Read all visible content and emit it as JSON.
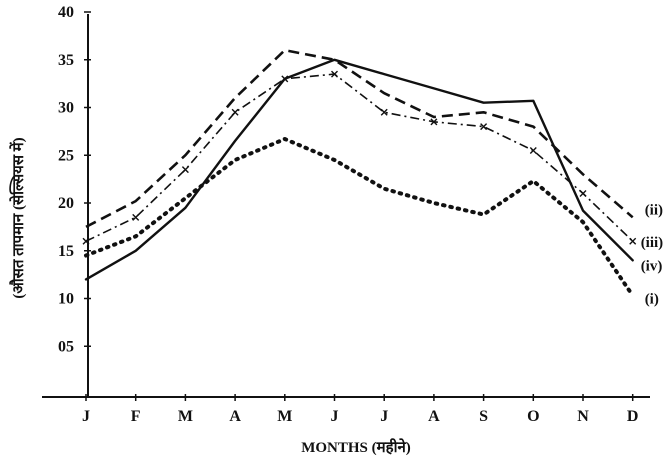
{
  "chart_data": {
    "type": "line",
    "title": "",
    "xlabel": "MONTHS (महीने)",
    "ylabel": "(औसत तापमान (सेल्सियस में)",
    "categories": [
      "J",
      "F",
      "M",
      "A",
      "M",
      "J",
      "J",
      "A",
      "S",
      "O",
      "N",
      "D"
    ],
    "ylim": [
      0,
      40
    ],
    "yticks": [
      "05",
      "10",
      "15",
      "20",
      "25",
      "30",
      "35",
      "40"
    ],
    "grid": false,
    "legend": "inline labels at right end of each line",
    "series": [
      {
        "name": "(i)",
        "style": "dotted",
        "values": [
          14.5,
          16.5,
          20.5,
          24.5,
          26.7,
          24.5,
          21.5,
          20,
          18.8,
          22.3,
          18,
          10.3
        ]
      },
      {
        "name": "(ii)",
        "style": "dashed",
        "values": [
          17.5,
          20.2,
          25,
          31,
          36,
          35,
          31.5,
          29,
          29.5,
          28,
          23,
          18.5
        ]
      },
      {
        "name": "(iii)",
        "style": "dash-dot-x",
        "values": [
          16,
          18.5,
          23.5,
          29.5,
          33,
          33.5,
          29.5,
          28.5,
          28,
          25.5,
          21,
          16
        ]
      },
      {
        "name": "(iv)",
        "style": "solid",
        "values": [
          12,
          15,
          19.5,
          26.5,
          33,
          35,
          33.5,
          32,
          30.5,
          30.7,
          19.2,
          14
        ]
      }
    ]
  }
}
